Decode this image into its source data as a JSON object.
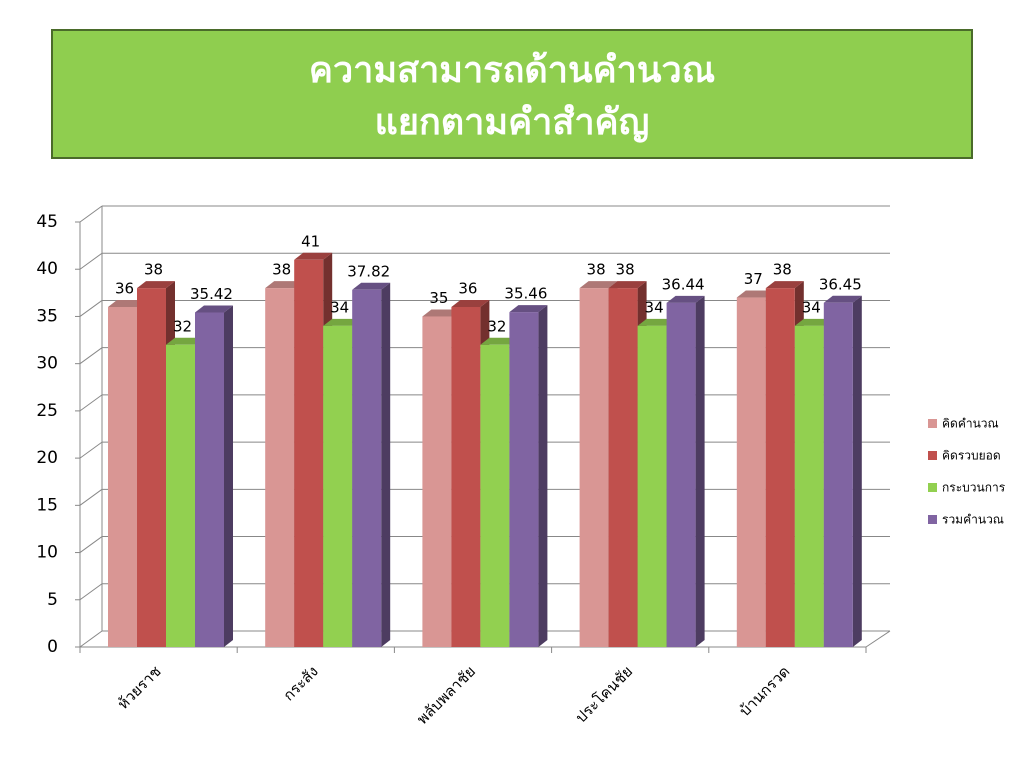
{
  "chart_data": {
    "type": "bar3d",
    "title": [
      "ความสามารถด้านคำนวณ",
      "แยกตามคำสำคัญ"
    ],
    "categories": [
      "ห้วยราช",
      "กระสัง",
      "พลับพลาชัย",
      "ประโคนชัย",
      "บ้านกรวด"
    ],
    "series": [
      {
        "name": "คิดคำนวณ",
        "color": "#d99694",
        "values": [
          36,
          38,
          35,
          38,
          37
        ]
      },
      {
        "name": "คิดรวบยอด",
        "color": "#c0504d",
        "values": [
          38,
          41,
          36,
          38,
          38
        ]
      },
      {
        "name": "กระบวนการ",
        "color": "#92d050",
        "values": [
          32,
          34,
          32,
          34,
          34
        ]
      },
      {
        "name": "รวมคำนวณ",
        "color": "#8064a2",
        "values": [
          35.42,
          37.82,
          35.46,
          36.44,
          36.45
        ]
      }
    ],
    "ylim": [
      0,
      45
    ],
    "yticks": [
      0,
      5,
      10,
      15,
      20,
      25,
      30,
      35,
      40,
      45
    ],
    "grid": true,
    "legend": "right"
  }
}
